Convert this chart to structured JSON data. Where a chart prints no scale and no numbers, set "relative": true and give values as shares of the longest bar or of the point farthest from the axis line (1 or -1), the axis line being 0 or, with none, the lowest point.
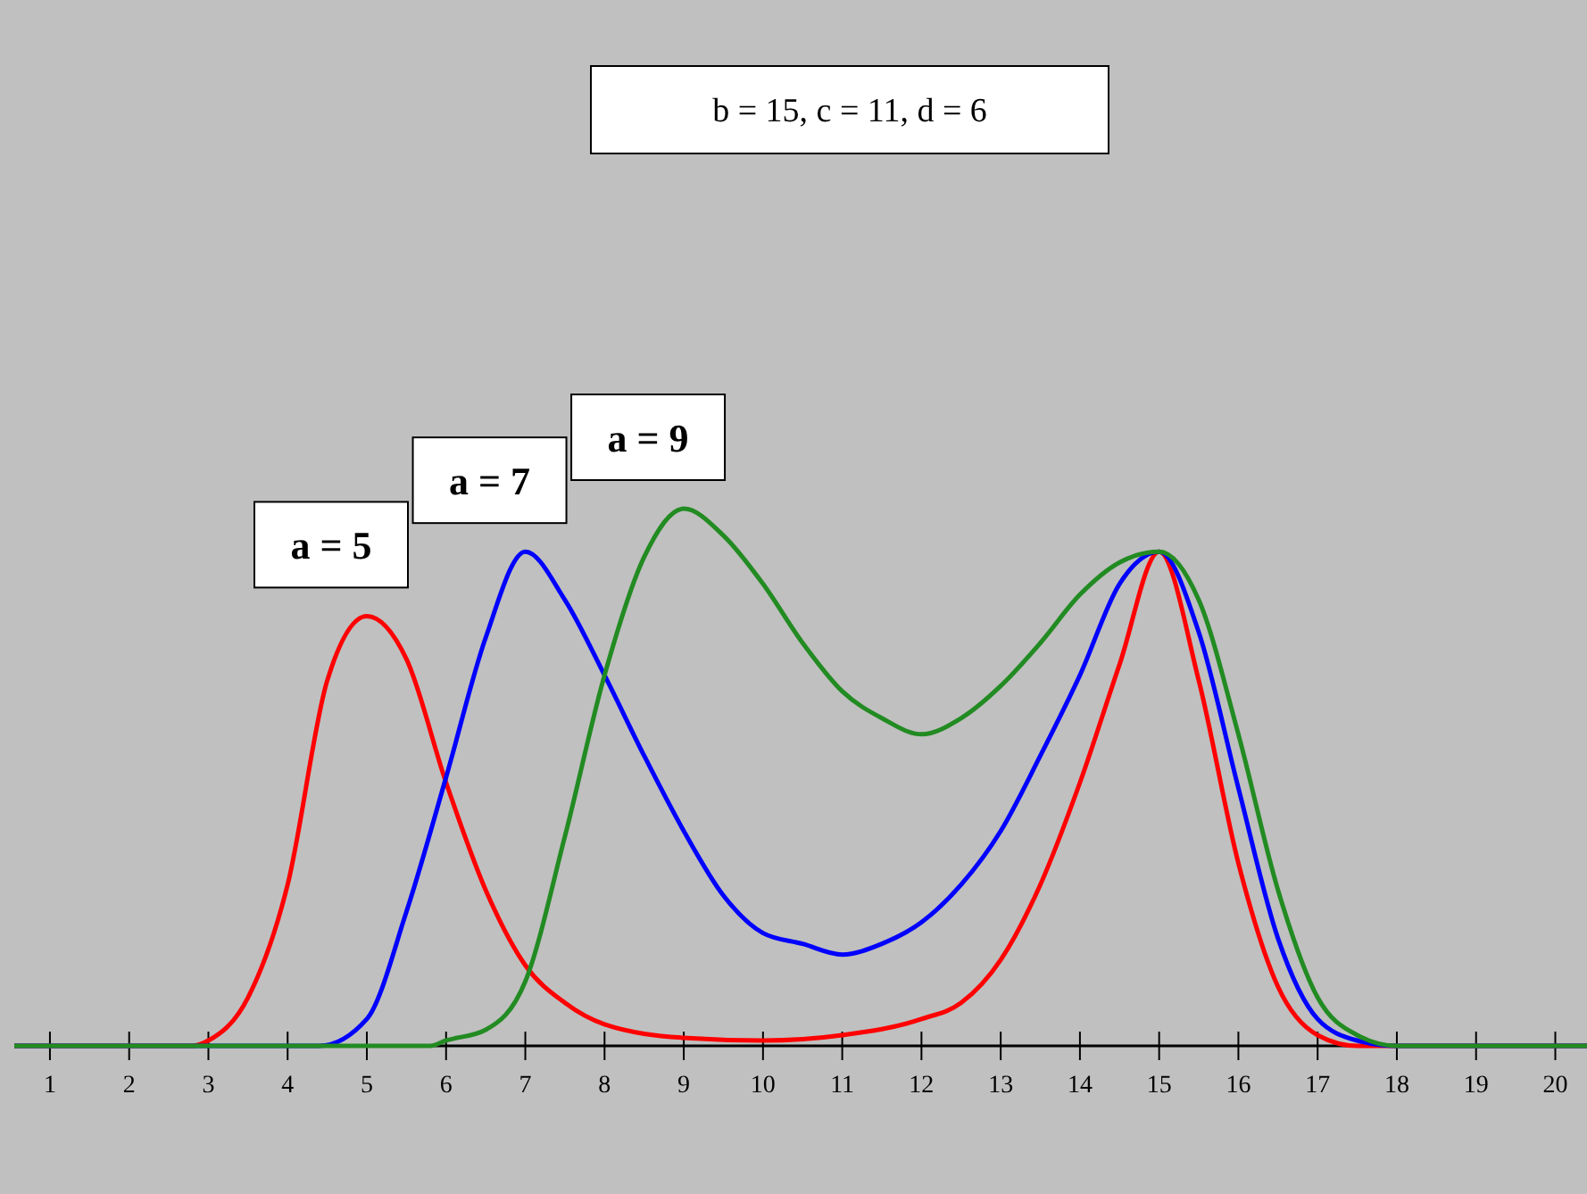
{
  "chart_data": {
    "type": "line",
    "title": "b = 15, c = 11, d = 6",
    "relative": true,
    "xlim": [
      0.55,
      20.4
    ],
    "xticks": [
      1,
      2,
      3,
      4,
      5,
      6,
      7,
      8,
      9,
      10,
      11,
      12,
      13,
      14,
      15,
      16,
      17,
      18,
      19,
      20
    ],
    "grid": false,
    "marker": "none",
    "line_style": "solid",
    "series": [
      {
        "name": "a = 5",
        "color": "#ff0000",
        "x": [
          0.55,
          2.8,
          3,
          3.5,
          4,
          4.5,
          5,
          5.5,
          6,
          6.5,
          7,
          7.5,
          8,
          9,
          10,
          11,
          12,
          12.5,
          13,
          13.5,
          14,
          14.5,
          15,
          15.5,
          16,
          16.5,
          17,
          17.5,
          20.4
        ],
        "values": [
          0,
          0,
          0.01,
          0.09,
          0.3,
          0.68,
          0.8,
          0.72,
          0.49,
          0.29,
          0.15,
          0.08,
          0.04,
          0.015,
          0.01,
          0.02,
          0.05,
          0.08,
          0.16,
          0.3,
          0.49,
          0.71,
          0.92,
          0.68,
          0.34,
          0.11,
          0.02,
          0,
          0
        ]
      },
      {
        "name": "a = 7",
        "color": "#0000ff",
        "x": [
          0.55,
          4.4,
          5,
          5.5,
          6,
          6.5,
          7,
          7.5,
          8,
          8.5,
          9,
          9.5,
          10,
          10.5,
          11,
          11.5,
          12,
          12.5,
          13,
          13.5,
          14,
          14.5,
          15,
          15.5,
          16,
          16.5,
          17,
          17.5,
          18,
          20.4
        ],
        "values": [
          0,
          0,
          0.05,
          0.25,
          0.5,
          0.76,
          0.92,
          0.83,
          0.69,
          0.54,
          0.4,
          0.28,
          0.21,
          0.19,
          0.17,
          0.19,
          0.23,
          0.3,
          0.4,
          0.54,
          0.69,
          0.86,
          0.92,
          0.77,
          0.48,
          0.2,
          0.05,
          0.01,
          0,
          0
        ]
      },
      {
        "name": "a = 9",
        "color": "#228b22",
        "x": [
          0.55,
          5.8,
          6,
          6.5,
          7,
          7.5,
          8,
          8.5,
          9,
          9.5,
          10,
          10.5,
          11,
          11.5,
          12,
          12.5,
          13,
          13.5,
          14,
          14.5,
          15,
          15.5,
          16,
          16.5,
          17,
          17.5,
          18,
          20.4
        ],
        "values": [
          0,
          0,
          0.01,
          0.03,
          0.12,
          0.39,
          0.69,
          0.91,
          1,
          0.95,
          0.86,
          0.75,
          0.66,
          0.61,
          0.58,
          0.61,
          0.67,
          0.75,
          0.84,
          0.9,
          0.92,
          0.83,
          0.58,
          0.29,
          0.09,
          0.02,
          0,
          0
        ]
      }
    ]
  }
}
